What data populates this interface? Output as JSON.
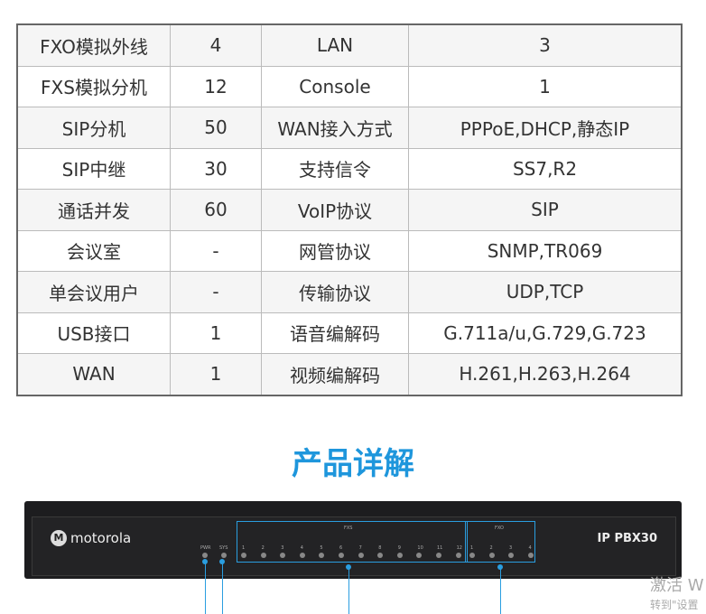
{
  "spec_table": [
    [
      "FXO模拟外线",
      "4",
      "LAN",
      "3"
    ],
    [
      "FXS模拟分机",
      "12",
      "Console",
      "1"
    ],
    [
      "SIP分机",
      "50",
      "WAN接入方式",
      "PPPoE,DHCP,静态IP"
    ],
    [
      "SIP中继",
      "30",
      "支持信令",
      "SS7,R2"
    ],
    [
      "通话并发",
      "60",
      "VoIP协议",
      "SIP"
    ],
    [
      "会议室",
      "-",
      "网管协议",
      "SNMP,TR069"
    ],
    [
      "单会议用户",
      "-",
      "传输协议",
      "UDP,TCP"
    ],
    [
      "USB接口",
      "1",
      "语音编解码",
      "G.711a/u,G.729,G.723"
    ],
    [
      "WAN",
      "1",
      "视频编解码",
      "H.261,H.263,H.264"
    ]
  ],
  "section_title": "产品详解",
  "device": {
    "brand": "motorola",
    "model": "IP PBX30",
    "pwr": "PWR",
    "sys": "SYS",
    "fxs": "FXS",
    "fxo": "FXO",
    "fxs_ports": [
      "1",
      "2",
      "3",
      "4",
      "5",
      "6",
      "7",
      "8",
      "9",
      "10",
      "11",
      "12"
    ],
    "fxo_ports": [
      "1",
      "2",
      "3",
      "4"
    ]
  },
  "watermark": {
    "line1": "激活 W",
    "line2": "转到\"设置"
  },
  "accent_color": "#1e96dc"
}
